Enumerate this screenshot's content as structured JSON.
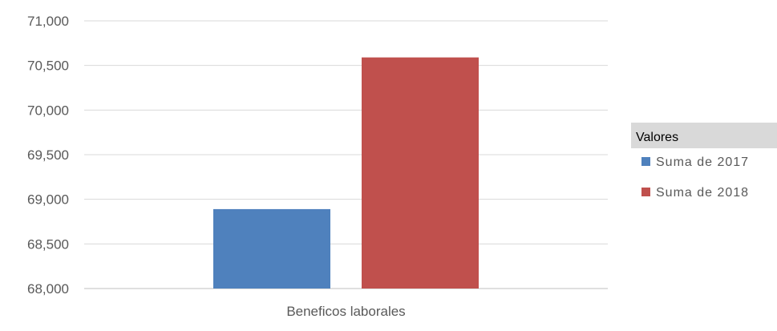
{
  "chart_data": {
    "type": "bar",
    "categories": [
      "Beneficos laborales"
    ],
    "series": [
      {
        "name": "Suma de 2017",
        "values": [
          68890
        ],
        "color": "#4F81BD"
      },
      {
        "name": "Suma de 2018",
        "values": [
          70590
        ],
        "color": "#C0504D"
      }
    ],
    "title": "",
    "xlabel": "",
    "ylabel": "",
    "ylim": [
      68000,
      71000
    ],
    "yticks": [
      68000,
      68500,
      69000,
      69500,
      70000,
      70500,
      71000
    ],
    "ytick_labels": [
      "68,000",
      "68,500",
      "69,000",
      "69,500",
      "70,000",
      "70,500",
      "71,000"
    ],
    "grid": true,
    "gridline_color": "#D9D9D9",
    "legend": {
      "title": "Valores",
      "position": "right",
      "entries": [
        "Suma de 2017",
        "Suma de 2018"
      ]
    }
  }
}
